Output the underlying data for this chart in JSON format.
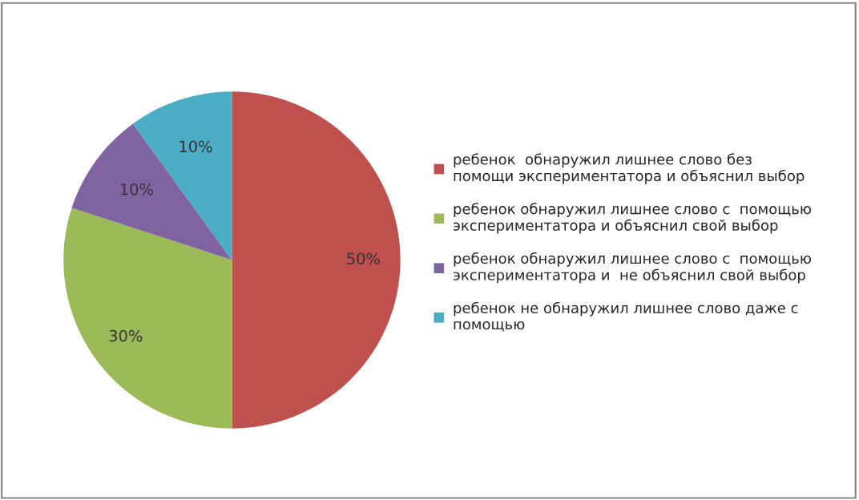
{
  "chart_data": {
    "type": "pie",
    "categories": [
      "ребенок  обнаружил лишнее слово без\nпомощи экспериментатора и объяснил выбор",
      "ребенок обнаружил лишнее слово с  помощью\nэкспериментатора и объяснил свой выбор",
      "ребенок обнаружил лишнее слово с  помощью\nэкспериментатора и  не объяснил свой выбор",
      "ребенок не обнаружил лишнее слово даже с\nпомощью"
    ],
    "values": [
      50,
      30,
      10,
      10
    ],
    "colors": [
      "#c0504d",
      "#9bbb59",
      "#8064a2",
      "#4bacc6"
    ],
    "value_labels": [
      "50%",
      "30%",
      "10%",
      "10%"
    ],
    "legend": "right"
  }
}
